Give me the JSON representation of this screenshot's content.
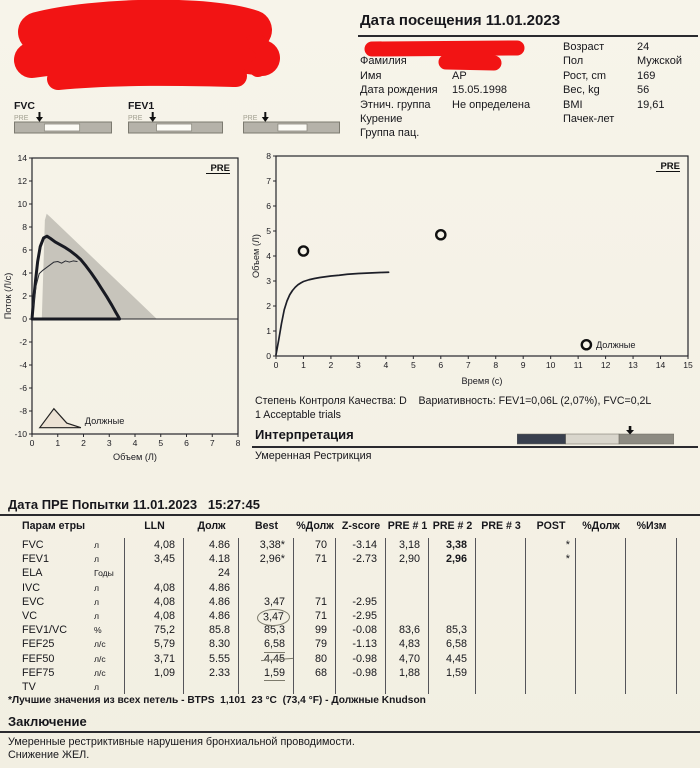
{
  "visit": {
    "title": "Дата посещения 11.01.2023"
  },
  "patient": {
    "left": [
      {
        "label": "",
        "value": "",
        "redacted": true
      },
      {
        "label": "Фамилия",
        "value": "",
        "redacted": true
      },
      {
        "label": "Имя",
        "value": "АР"
      },
      {
        "label": "Дата рождения",
        "value": "15.05.1998"
      },
      {
        "label": "Этнич. группа",
        "value": "Не определена"
      },
      {
        "label": "Курение",
        "value": ""
      },
      {
        "label": "Группа пац.",
        "value": ""
      }
    ],
    "right": [
      {
        "label": "Возраст",
        "value": "24"
      },
      {
        "label": "Пол",
        "value": "Мужской"
      },
      {
        "label": "Рост, cm",
        "value": "169"
      },
      {
        "label": "Вес, kg",
        "value": "56"
      },
      {
        "label": "BMI",
        "value": "19,61"
      },
      {
        "label": "Пачек-лет",
        "value": ""
      }
    ]
  },
  "gauges": {
    "pre_label": "PRE",
    "bar_color": "#b5b2a9",
    "items": [
      {
        "label": "FVC",
        "window_pct": [
          31,
          67
        ],
        "arrow_pct": 26
      },
      {
        "label": "FEV1",
        "window_pct": [
          30,
          67
        ],
        "arrow_pct": 26
      },
      {
        "label": "",
        "window_pct": [
          36,
          66
        ],
        "arrow_pct": 23
      }
    ]
  },
  "chart_data": [
    {
      "id": "flow_volume",
      "type": "line",
      "title": "Flow-Volume loop (PRE)",
      "corner_label": "PRE",
      "xlabel": "Объем (Л)",
      "ylabel": "Поток (Л/с)",
      "xlim": [
        0,
        8
      ],
      "ylim": [
        -10,
        14
      ],
      "xstep": 1,
      "ystep": 2,
      "zero_line": true,
      "predicted_area": {
        "color": "#c7c4bb",
        "points": [
          [
            0.38,
            0
          ],
          [
            0.5,
            8.6
          ],
          [
            0.57,
            9.15
          ],
          [
            0.72,
            8.85
          ],
          [
            4.85,
            0
          ]
        ]
      },
      "series": [
        {
          "name": "best-trial-loop",
          "width": 3,
          "color": "#181a22",
          "points": [
            [
              0,
              0
            ],
            [
              0.06,
              1.6
            ],
            [
              0.14,
              3.4
            ],
            [
              0.22,
              5.0
            ],
            [
              0.32,
              6.3
            ],
            [
              0.45,
              7.05
            ],
            [
              0.58,
              7.2
            ],
            [
              0.72,
              7.0
            ],
            [
              0.9,
              6.7
            ],
            [
              1.1,
              6.45
            ],
            [
              1.3,
              6.2
            ],
            [
              1.5,
              5.9
            ],
            [
              1.7,
              5.55
            ],
            [
              1.9,
              5.15
            ],
            [
              2.1,
              4.6
            ],
            [
              2.3,
              4.0
            ],
            [
              2.5,
              3.35
            ],
            [
              2.7,
              2.65
            ],
            [
              2.9,
              1.95
            ],
            [
              3.1,
              1.2
            ],
            [
              3.25,
              0.6
            ],
            [
              3.38,
              0.1
            ],
            [
              3.4,
              0
            ],
            [
              0.02,
              0
            ]
          ]
        },
        {
          "name": "second-trial",
          "width": 1,
          "color": "#2a2c33",
          "points": [
            [
              0.06,
              1.2
            ],
            [
              0.16,
              2.9
            ],
            [
              0.28,
              3.95
            ],
            [
              0.4,
              4.2
            ],
            [
              0.55,
              4.45
            ],
            [
              0.7,
              4.7
            ],
            [
              0.85,
              4.95
            ],
            [
              1.0,
              5.0
            ],
            [
              1.15,
              4.85
            ],
            [
              1.3,
              5.05
            ],
            [
              1.45,
              4.95
            ],
            [
              1.6,
              5.05
            ],
            [
              1.75,
              5.0
            ]
          ]
        }
      ],
      "legend": {
        "label": "Должные",
        "triangle": [
          [
            0.3,
            -9.45
          ],
          [
            0.85,
            -7.8
          ],
          [
            1.35,
            -9.05
          ],
          [
            1.9,
            -9.45
          ]
        ],
        "fill": "#ece2d4",
        "text_at": [
          2.05,
          -9.15
        ]
      }
    },
    {
      "id": "volume_time",
      "type": "line",
      "title": "Volume-Time curve (PRE)",
      "corner_label": "PRE",
      "xlabel": "Время (с)",
      "ylabel": "Объем (Л)",
      "xlim": [
        0,
        15
      ],
      "ylim": [
        0,
        8
      ],
      "xstep": 1,
      "ystep": 1,
      "series": [
        {
          "name": "volume-time-curve",
          "width": 1.7,
          "color": "#1d1f28",
          "points": [
            [
              0,
              0.05
            ],
            [
              0.1,
              0.65
            ],
            [
              0.2,
              1.3
            ],
            [
              0.3,
              1.85
            ],
            [
              0.4,
              2.2
            ],
            [
              0.5,
              2.45
            ],
            [
              0.6,
              2.62
            ],
            [
              0.7,
              2.75
            ],
            [
              0.8,
              2.85
            ],
            [
              0.9,
              2.92
            ],
            [
              1.0,
              2.98
            ],
            [
              1.2,
              3.05
            ],
            [
              1.4,
              3.1
            ],
            [
              1.6,
              3.14
            ],
            [
              1.8,
              3.17
            ],
            [
              2.0,
              3.2
            ],
            [
              2.3,
              3.23
            ],
            [
              2.6,
              3.27
            ],
            [
              3.0,
              3.3
            ],
            [
              3.4,
              3.32
            ],
            [
              3.8,
              3.34
            ],
            [
              4.1,
              3.35
            ]
          ]
        }
      ],
      "markers": {
        "name": "predicted-points",
        "points": [
          [
            1,
            4.2
          ],
          [
            6,
            4.85
          ]
        ]
      },
      "legend": {
        "label": "Должные",
        "circle_at": [
          11.3,
          0.45
        ],
        "text_at": [
          11.65,
          0.32
        ]
      }
    }
  ],
  "qc": {
    "line1": "Степень Контроля Качества: D    Вариативность: FEV1=0,06L (2,07%), FVC=0,2L",
    "line2": "1 Acceptable trials"
  },
  "interpretation": {
    "heading": "Интерпретация",
    "text": "Умеренная Рестрикция",
    "scale": {
      "segments": [
        {
          "width_pct": 31,
          "color": "#39404e"
        },
        {
          "width_pct": 34,
          "color": "#d9d6cc"
        },
        {
          "width_pct": 35,
          "color": "#8d8b82"
        }
      ],
      "arrow_pct": 72
    }
  },
  "attempts": {
    "title": "Дата ПРЕ Попытки 11.01.2023   15:27:45",
    "columns": [
      "Парам етры",
      "",
      "LLN",
      "Долж",
      "Best",
      "%Долж",
      "Z-score",
      "PRE # 1",
      "PRE # 2",
      "PRE # 3",
      "POST",
      "%Долж",
      "%Изм"
    ],
    "rows": [
      {
        "cells": [
          "FVC",
          "л",
          "4,08",
          "4.86",
          "3,38*",
          "70",
          "-3.14",
          "3,18",
          "3,38",
          "",
          "*",
          "",
          ""
        ],
        "bold": [
          8
        ]
      },
      {
        "cells": [
          "FEV1",
          "л",
          "3,45",
          "4.18",
          "2,96*",
          "71",
          "-2.73",
          "2,90",
          "2,96",
          "",
          "*",
          "",
          ""
        ],
        "bold": [
          8
        ]
      },
      {
        "cells": [
          "ELA",
          "Годы",
          "",
          "24",
          "",
          "",
          "",
          "",
          "",
          "",
          "",
          "",
          ""
        ]
      },
      {
        "cells": [
          "IVC",
          "л",
          "4,08",
          "4.86",
          "",
          "",
          "",
          "",
          "",
          "",
          "",
          "",
          ""
        ]
      },
      {
        "cells": [
          "EVC",
          "л",
          "4,08",
          "4.86",
          "3,47",
          "71",
          "-2.95",
          "",
          "",
          "",
          "",
          "",
          ""
        ]
      },
      {
        "cells": [
          "VC",
          "л",
          "4,08",
          "4.86",
          "3,47",
          "71",
          "-2.95",
          "",
          "",
          "",
          "",
          "",
          ""
        ],
        "anno": {
          "4": "circle"
        }
      },
      {
        "cells": [
          "FEV1/VC",
          "%",
          "75,2",
          "85.8",
          "85,3",
          "99",
          "-0.08",
          "83,6",
          "85,3",
          "",
          "",
          "",
          ""
        ]
      },
      {
        "cells": [
          "FEF25",
          "л/с",
          "5,79",
          "8.30",
          "6,58",
          "79",
          "-1.13",
          "4,83",
          "6,58",
          "",
          "",
          "",
          ""
        ],
        "anno": {
          "4": "underline"
        }
      },
      {
        "cells": [
          "FEF50",
          "л/с",
          "3,71",
          "5.55",
          "4,45",
          "80",
          "-0.98",
          "4,70",
          "4,45",
          "",
          "",
          "",
          ""
        ],
        "anno": {
          "4": "strike"
        }
      },
      {
        "cells": [
          "FEF75",
          "л/с",
          "1,09",
          "2.33",
          "1,59",
          "68",
          "-0.98",
          "1,88",
          "1,59",
          "",
          "",
          "",
          ""
        ],
        "anno": {
          "4": "underline"
        }
      },
      {
        "cells": [
          "TV",
          "л",
          "",
          "",
          "",
          "",
          "",
          "",
          "",
          "",
          "",
          "",
          ""
        ]
      }
    ]
  },
  "footnote": "*Лучшие значения из всех петель - BTPS  1,101  23 °C  (73,4 °F) - Должные Knudson",
  "conclusion": {
    "heading": "Заключение",
    "lines": [
      "Умеренные рестриктивные нарушения бронхиальной проводимости.",
      "Снижение ЖЕЛ."
    ]
  },
  "colors": {
    "redaction": "#f21414",
    "paper": "#f6f3e8",
    "ink": "#17171c",
    "pen_annotation": "#7d7b6d",
    "predicted_area": "#c7c4bb"
  }
}
